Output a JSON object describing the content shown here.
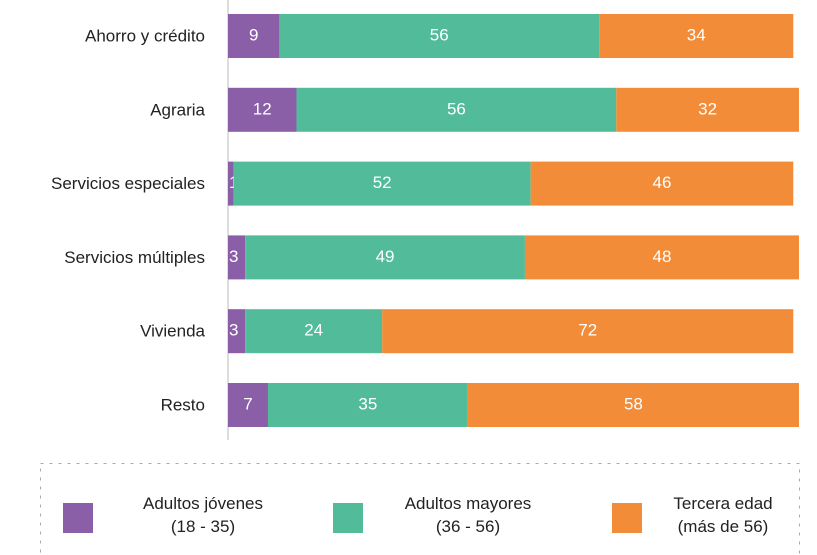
{
  "chart_data": {
    "type": "stacked_bar_horizontal",
    "categories": [
      "Ahorro y crédito",
      "Agraria",
      "Servicios especiales",
      "Servicios múltiples",
      "Vivienda",
      "Resto"
    ],
    "series": [
      {
        "name": "Adultos jóvenes (18 - 35)",
        "color": "#8a5fa8",
        "values": [
          9,
          12,
          1,
          3,
          3,
          7
        ]
      },
      {
        "name": "Adultos mayores (36 - 56)",
        "color": "#52bc9a",
        "values": [
          56,
          56,
          52,
          49,
          24,
          35
        ]
      },
      {
        "name": "Tercera edad (más de 56)",
        "color": "#f28c38",
        "values": [
          34,
          32,
          46,
          48,
          72,
          58
        ]
      }
    ],
    "xlim": [
      0,
      100
    ],
    "legend": "bottom"
  }
}
